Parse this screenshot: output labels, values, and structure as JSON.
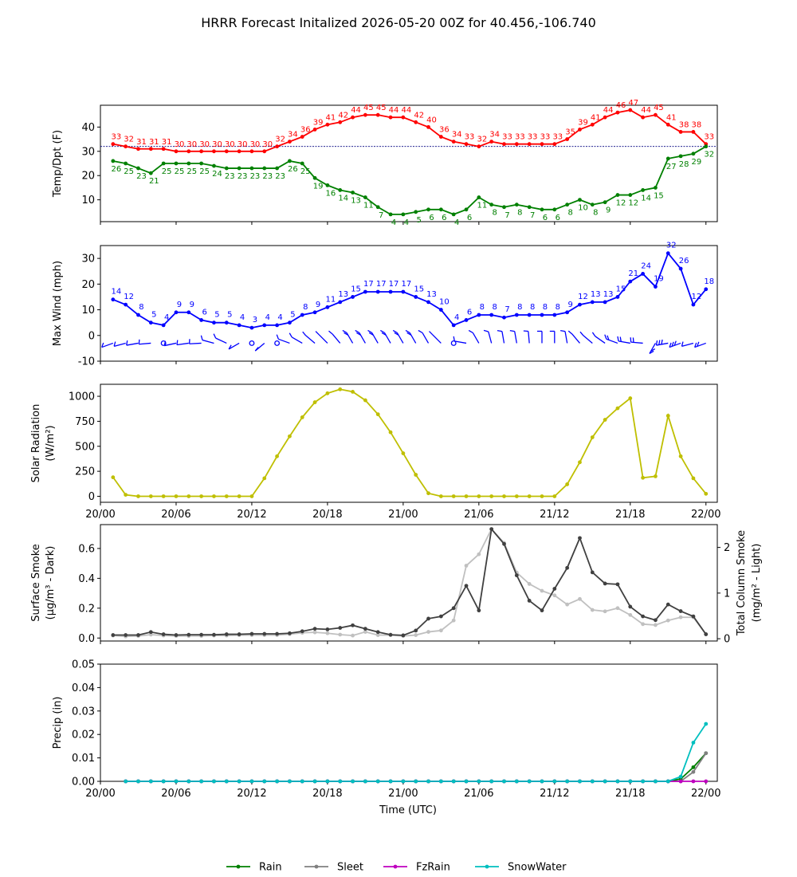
{
  "title": "HRRR Forecast Initalized 2026-05-20 00Z for 40.456,-106.740",
  "colors": {
    "temp": "#ff0000",
    "dewpoint": "#008000",
    "wind": "#0000ff",
    "solar": "#bfbf00",
    "smoke_dark": "#404040",
    "smoke_light": "#c0c0c0",
    "rain": "#008000",
    "sleet": "#808080",
    "fzrain": "#bf00bf",
    "snow": "#00bfbf"
  },
  "time_ticks": [
    "20/00",
    "20/06",
    "20/12",
    "20/18",
    "21/00",
    "21/06",
    "21/12",
    "21/18",
    "22/00"
  ],
  "xlabel": "Time (UTC)",
  "chart_data": [
    {
      "type": "line",
      "ylabel": "Temp/Dpt (F)",
      "ylim": [
        1,
        49
      ],
      "yticks": [
        10,
        20,
        30,
        40
      ],
      "freezing_line": 32,
      "x_hours": [
        1,
        2,
        3,
        4,
        5,
        6,
        7,
        8,
        9,
        10,
        11,
        12,
        13,
        14,
        15,
        16,
        17,
        18,
        19,
        20,
        21,
        22,
        23,
        24,
        25,
        26,
        27,
        28,
        29,
        30,
        31,
        32,
        33,
        34,
        35,
        36,
        37,
        38,
        39,
        40,
        41,
        42,
        43,
        44,
        45,
        46,
        47,
        48
      ],
      "series": [
        {
          "values": [
            33,
            32,
            31,
            31,
            31,
            30,
            30,
            30,
            30,
            30,
            30,
            30,
            30,
            32,
            34,
            36,
            39,
            41,
            42,
            44,
            45,
            45,
            44,
            44,
            42,
            40,
            36,
            34,
            33,
            32,
            34,
            33,
            33,
            33,
            33,
            33,
            35,
            39,
            41,
            44,
            46,
            47,
            44,
            45,
            41,
            38,
            38,
            33
          ]
        },
        {
          "values": [
            26,
            25,
            23,
            21,
            25,
            25,
            25,
            25,
            24,
            23,
            23,
            23,
            23,
            23,
            26,
            25,
            19,
            16,
            14,
            13,
            11,
            7,
            4,
            4,
            5,
            6,
            6,
            4,
            6,
            11,
            8,
            7,
            8,
            7,
            6,
            6,
            8,
            10,
            8,
            9,
            12,
            12,
            14,
            15,
            27,
            28,
            29,
            32
          ]
        }
      ]
    },
    {
      "type": "line",
      "ylabel": "Max Wind (mph)",
      "ylim": [
        -10,
        35
      ],
      "yticks": [
        -10,
        0,
        10,
        20,
        30
      ],
      "x_hours": [
        1,
        2,
        3,
        4,
        5,
        6,
        7,
        8,
        9,
        10,
        11,
        12,
        13,
        14,
        15,
        16,
        17,
        18,
        19,
        20,
        21,
        22,
        23,
        24,
        25,
        26,
        27,
        28,
        29,
        30,
        31,
        32,
        33,
        34,
        35,
        36,
        37,
        38,
        39,
        40,
        41,
        42,
        43,
        44,
        45,
        46,
        47,
        48
      ],
      "series": [
        {
          "values": [
            14,
            12,
            8,
            5,
            4,
            9,
            9,
            6,
            5,
            5,
            4,
            3,
            4,
            4,
            5,
            8,
            9,
            11,
            13,
            15,
            17,
            17,
            17,
            17,
            15,
            13,
            10,
            4,
            6,
            8,
            8,
            7,
            8,
            8,
            8,
            8,
            9,
            12,
            13,
            13,
            15,
            21,
            24,
            19,
            32,
            26,
            12,
            18
          ]
        }
      ],
      "wind_barbs": "present"
    },
    {
      "type": "line",
      "ylabel": "Solar Radiation",
      "ylabel_unit": "(W/m²)",
      "ylim": [
        -60,
        1120
      ],
      "yticks": [
        0,
        250,
        500,
        750,
        1000
      ],
      "x_hours": [
        1,
        2,
        3,
        4,
        5,
        6,
        7,
        8,
        9,
        10,
        11,
        12,
        13,
        14,
        15,
        16,
        17,
        18,
        19,
        20,
        21,
        22,
        23,
        24,
        25,
        26,
        27,
        28,
        29,
        30,
        31,
        32,
        33,
        34,
        35,
        36,
        37,
        38,
        39,
        40,
        41,
        42,
        43,
        44,
        45,
        46,
        47,
        48
      ],
      "series": [
        {
          "values": [
            190,
            15,
            0,
            0,
            0,
            0,
            0,
            0,
            0,
            0,
            0,
            0,
            180,
            400,
            600,
            790,
            940,
            1030,
            1070,
            1045,
            960,
            820,
            640,
            430,
            215,
            30,
            0,
            0,
            0,
            0,
            0,
            0,
            0,
            0,
            0,
            0,
            120,
            340,
            590,
            765,
            880,
            980,
            185,
            200,
            805,
            400,
            180,
            25
          ]
        }
      ]
    },
    {
      "type": "line",
      "ylabel": "Surface Smoke",
      "ylabel_unit": "(μg/m³ - Dark)",
      "ylabel_right": "Total Column Smoke",
      "ylabel_right_unit": "(mg/m² - Light)",
      "ylim": [
        -0.02,
        0.76
      ],
      "yticks": [
        0.0,
        0.2,
        0.4,
        0.6
      ],
      "ylim_right": [
        -0.05,
        2.5
      ],
      "yticks_right": [
        0,
        1,
        2
      ],
      "x_hours": [
        1,
        2,
        3,
        4,
        5,
        6,
        7,
        8,
        9,
        10,
        11,
        12,
        13,
        14,
        15,
        16,
        17,
        18,
        19,
        20,
        21,
        22,
        23,
        24,
        25,
        26,
        27,
        28,
        29,
        30,
        31,
        32,
        33,
        34,
        35,
        36,
        37,
        38,
        39,
        40,
        41,
        42,
        43,
        44,
        45,
        46,
        47,
        48
      ],
      "series": [
        {
          "values": [
            0.02,
            0.02,
            0.02,
            0.04,
            0.025,
            0.02,
            0.022,
            0.022,
            0.022,
            0.025,
            0.025,
            0.028,
            0.028,
            0.028,
            0.032,
            0.045,
            0.062,
            0.058,
            0.068,
            0.085,
            0.062,
            0.04,
            0.022,
            0.018,
            0.05,
            0.13,
            0.145,
            0.2,
            0.35,
            0.185,
            0.73,
            0.63,
            0.42,
            0.25,
            0.185,
            0.33,
            0.47,
            0.67,
            0.44,
            0.365,
            0.36,
            0.21,
            0.145,
            0.12,
            0.225,
            0.18,
            0.145,
            0.025
          ]
        },
        {
          "values": [
            0.07,
            0.05,
            0.06,
            0.09,
            0.07,
            0.06,
            0.06,
            0.06,
            0.07,
            0.07,
            0.08,
            0.08,
            0.08,
            0.08,
            0.1,
            0.13,
            0.14,
            0.12,
            0.09,
            0.07,
            0.15,
            0.08,
            0.08,
            0.06,
            0.08,
            0.15,
            0.18,
            0.4,
            1.6,
            1.85,
            2.4,
            2.1,
            1.45,
            1.2,
            1.05,
            0.95,
            0.75,
            0.87,
            0.63,
            0.6,
            0.67,
            0.52,
            0.32,
            0.3,
            0.4,
            0.47,
            0.47,
            0.1
          ]
        }
      ]
    },
    {
      "type": "line",
      "ylabel": "Precip (in)",
      "ylim": [
        0,
        0.05
      ],
      "yticks": [
        0.0,
        0.01,
        0.02,
        0.03,
        0.04,
        0.05
      ],
      "x_hours": [
        2,
        3,
        4,
        5,
        6,
        7,
        8,
        9,
        10,
        11,
        12,
        13,
        14,
        15,
        16,
        17,
        18,
        19,
        20,
        21,
        22,
        23,
        24,
        25,
        26,
        27,
        28,
        29,
        30,
        31,
        32,
        33,
        34,
        35,
        36,
        37,
        38,
        39,
        40,
        41,
        42,
        43,
        44,
        45,
        46,
        47,
        48
      ],
      "series": [
        {
          "name": "Rain",
          "values": [
            0,
            0,
            0,
            0,
            0,
            0,
            0,
            0,
            0,
            0,
            0,
            0,
            0,
            0,
            0,
            0,
            0,
            0,
            0,
            0,
            0,
            0,
            0,
            0,
            0,
            0,
            0,
            0,
            0,
            0,
            0,
            0,
            0,
            0,
            0,
            0,
            0,
            0,
            0,
            0,
            0,
            0,
            0,
            0,
            0.001,
            0.006,
            0.012
          ]
        },
        {
          "name": "Sleet",
          "values": [
            0,
            0,
            0,
            0,
            0,
            0,
            0,
            0,
            0,
            0,
            0,
            0,
            0,
            0,
            0,
            0,
            0,
            0,
            0,
            0,
            0,
            0,
            0,
            0,
            0,
            0,
            0,
            0,
            0,
            0,
            0,
            0,
            0,
            0,
            0,
            0,
            0,
            0,
            0,
            0,
            0,
            0,
            0,
            0,
            0,
            0.004,
            0.012
          ]
        },
        {
          "name": "FzRain",
          "values": [
            0,
            0,
            0,
            0,
            0,
            0,
            0,
            0,
            0,
            0,
            0,
            0,
            0,
            0,
            0,
            0,
            0,
            0,
            0,
            0,
            0,
            0,
            0,
            0,
            0,
            0,
            0,
            0,
            0,
            0,
            0,
            0,
            0,
            0,
            0,
            0,
            0,
            0,
            0,
            0,
            0,
            0,
            0,
            0,
            0,
            0,
            0
          ]
        },
        {
          "name": "SnowWater",
          "values": [
            0,
            0,
            0,
            0,
            0,
            0,
            0,
            0,
            0,
            0,
            0,
            0,
            0,
            0,
            0,
            0,
            0,
            0,
            0,
            0,
            0,
            0,
            0,
            0,
            0,
            0,
            0,
            0,
            0,
            0,
            0,
            0,
            0,
            0,
            0,
            0,
            0,
            0,
            0,
            0,
            0,
            0,
            0,
            0,
            0.002,
            0.0165,
            0.0245
          ]
        }
      ],
      "legend_position": "bottom-center"
    }
  ]
}
